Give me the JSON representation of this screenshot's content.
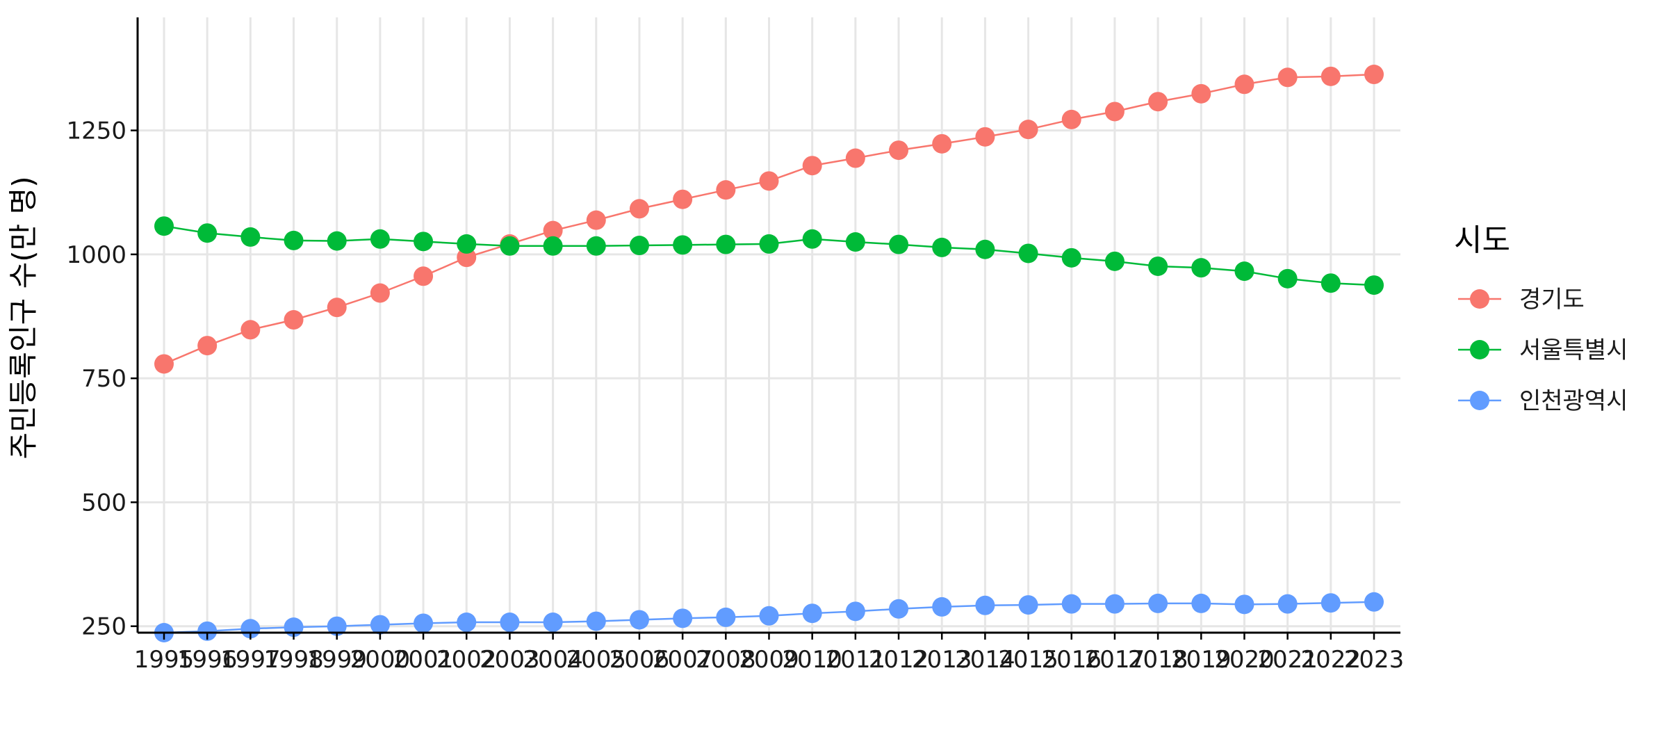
{
  "chart_data": {
    "type": "line",
    "title": "",
    "xlabel": "",
    "ylabel": "주민등록인구 수(만 명)",
    "ylim": [
      237,
      1478
    ],
    "yticks": [
      250,
      500,
      750,
      1000,
      1250
    ],
    "x": [
      1995,
      1996,
      1997,
      1998,
      1999,
      2000,
      2001,
      2002,
      2003,
      2004,
      2005,
      2006,
      2007,
      2008,
      2009,
      2010,
      2011,
      2012,
      2013,
      2014,
      2015,
      2016,
      2017,
      2018,
      2019,
      2020,
      2021,
      2022,
      2023
    ],
    "grid": true,
    "legend": {
      "title": "시도",
      "position": "right"
    },
    "series": [
      {
        "name": "경기도",
        "color": "#F8766D",
        "values": [
          779,
          816,
          848,
          868,
          893,
          922,
          956,
          994,
          1021,
          1048,
          1069,
          1092,
          1111,
          1130,
          1148,
          1179,
          1194,
          1210,
          1223,
          1237,
          1252,
          1272,
          1288,
          1308,
          1324,
          1343,
          1357,
          1359,
          1363
        ]
      },
      {
        "name": "서울특별시",
        "color": "#00BA38",
        "values": [
          1057,
          1043,
          1035,
          1028,
          1027,
          1031,
          1026,
          1021,
          1017,
          1017,
          1017,
          1018,
          1019,
          1020,
          1021,
          1031,
          1025,
          1020,
          1014,
          1010,
          1002,
          993,
          986,
          976,
          973,
          966,
          951,
          942,
          938
        ]
      },
      {
        "name": "인천광역시",
        "color": "#619CFF",
        "values": [
          237,
          240,
          245,
          248,
          250,
          253,
          256,
          258,
          258,
          258,
          260,
          263,
          266,
          268,
          271,
          276,
          280,
          285,
          289,
          292,
          293,
          295,
          295,
          296,
          296,
          294,
          295,
          297,
          299
        ]
      }
    ]
  }
}
